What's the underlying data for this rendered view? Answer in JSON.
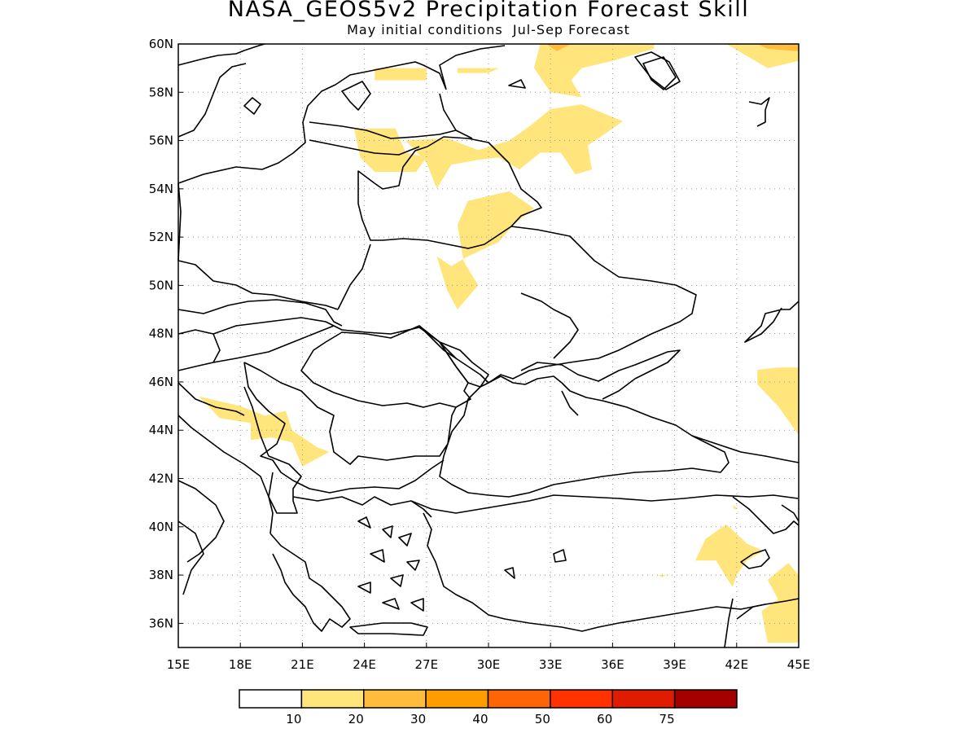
{
  "title": "NASA_GEOS5v2 Precipitation Forecast Skill",
  "subtitle": "May initial conditions  Jul-Sep Forecast",
  "map": {
    "lon_range": [
      15,
      45
    ],
    "lat_range": [
      35,
      60
    ],
    "lon_ticks": [
      "15E",
      "18E",
      "21E",
      "24E",
      "27E",
      "30E",
      "33E",
      "36E",
      "39E",
      "42E",
      "45E"
    ],
    "lat_ticks": [
      "60N",
      "58N",
      "56N",
      "54N",
      "52N",
      "50N",
      "48N",
      "46N",
      "44N",
      "42N",
      "40N",
      "38N",
      "36N"
    ],
    "grid": "dotted",
    "skill_regions": [
      {
        "level": "10-20",
        "lonlat": [
          [
            23.5,
            56.5
          ],
          [
            25.5,
            56.5
          ],
          [
            26,
            55.5
          ],
          [
            27,
            55.3
          ],
          [
            26.5,
            54.7
          ],
          [
            24.5,
            54.7
          ],
          [
            23.8,
            55.3
          ]
        ]
      },
      {
        "level": "10-20",
        "lonlat": [
          [
            26,
            56
          ],
          [
            28,
            56.1
          ],
          [
            29.5,
            55.6
          ],
          [
            31,
            56
          ],
          [
            32,
            56.6
          ],
          [
            33,
            57.3
          ],
          [
            34.5,
            57.5
          ],
          [
            36.5,
            56.8
          ],
          [
            35.5,
            56.2
          ],
          [
            34.8,
            55.8
          ],
          [
            35,
            54.8
          ],
          [
            34.2,
            54.6
          ],
          [
            33.5,
            55.5
          ],
          [
            32.5,
            55.5
          ],
          [
            31.5,
            54.8
          ],
          [
            30.5,
            55.3
          ],
          [
            29.5,
            55.2
          ],
          [
            28.2,
            55
          ],
          [
            27.5,
            54
          ],
          [
            27,
            55.1
          ]
        ]
      },
      {
        "level": "10-20",
        "lonlat": [
          [
            29,
            53.5
          ],
          [
            31,
            53.9
          ],
          [
            32.2,
            53.2
          ],
          [
            31.2,
            52.5
          ],
          [
            30.5,
            51.8
          ],
          [
            29,
            51.2
          ],
          [
            28.2,
            50.8
          ],
          [
            27.5,
            51.2
          ],
          [
            28,
            49.8
          ],
          [
            28.5,
            49
          ],
          [
            29.5,
            50
          ],
          [
            28.8,
            51
          ],
          [
            28.5,
            52.5
          ]
        ]
      },
      {
        "level": "10-20",
        "lonlat": [
          [
            28.5,
            59
          ],
          [
            30.5,
            59
          ],
          [
            30,
            58.8
          ],
          [
            28.5,
            58.8
          ]
        ]
      },
      {
        "level": "10-20",
        "lonlat": [
          [
            24.5,
            59
          ],
          [
            27,
            59
          ],
          [
            27,
            58.5
          ],
          [
            24.5,
            58.5
          ]
        ]
      },
      {
        "level": "10-20",
        "lonlat": [
          [
            32.5,
            60
          ],
          [
            38,
            60
          ],
          [
            38,
            59.8
          ],
          [
            36,
            59.3
          ],
          [
            34.5,
            59
          ],
          [
            34,
            58.5
          ],
          [
            34.5,
            57.8
          ],
          [
            33,
            58
          ],
          [
            32.2,
            59
          ]
        ]
      },
      {
        "level": "10-20",
        "lonlat": [
          [
            41.5,
            60
          ],
          [
            45,
            60
          ],
          [
            45,
            59.3
          ],
          [
            43.5,
            59
          ],
          [
            42.5,
            59.5
          ]
        ]
      },
      {
        "level": "20-30",
        "lonlat": [
          [
            32.8,
            60
          ],
          [
            34,
            60
          ],
          [
            33.3,
            59.7
          ]
        ]
      },
      {
        "level": "20-30",
        "lonlat": [
          [
            43,
            60
          ],
          [
            45,
            60
          ],
          [
            45,
            59.7
          ],
          [
            43.5,
            59.8
          ]
        ]
      },
      {
        "level": "10-20",
        "lonlat": [
          [
            16,
            45.4
          ],
          [
            18,
            45
          ],
          [
            19.2,
            44.6
          ],
          [
            20.2,
            44.8
          ],
          [
            20.5,
            44
          ],
          [
            21.7,
            43.3
          ],
          [
            22.3,
            43.1
          ],
          [
            21,
            42.5
          ],
          [
            20.5,
            43.5
          ],
          [
            19.5,
            43.7
          ],
          [
            18.5,
            43.6
          ],
          [
            18.5,
            44.3
          ],
          [
            17,
            44.5
          ]
        ]
      },
      {
        "level": "10-20",
        "lonlat": [
          [
            43,
            46.5
          ],
          [
            44,
            46.6
          ],
          [
            45,
            46.6
          ],
          [
            45,
            43.8
          ],
          [
            44,
            45
          ],
          [
            43,
            45.9
          ]
        ]
      },
      {
        "level": "10-20",
        "lonlat": [
          [
            40.5,
            39.5
          ],
          [
            41.5,
            40.1
          ],
          [
            42.5,
            39.3
          ],
          [
            43.3,
            39
          ],
          [
            42.5,
            38.6
          ],
          [
            42,
            38
          ],
          [
            41.8,
            37.5
          ],
          [
            41,
            38.6
          ],
          [
            40,
            38.6
          ]
        ]
      },
      {
        "level": "10-20",
        "lonlat": [
          [
            43.5,
            37.8
          ],
          [
            44.5,
            38.5
          ],
          [
            45,
            38
          ],
          [
            45,
            35.2
          ],
          [
            43.5,
            35.2
          ],
          [
            43.2,
            36.5
          ],
          [
            44,
            37
          ]
        ]
      },
      {
        "level": "10-20",
        "lonlat": [
          [
            38.2,
            38
          ],
          [
            38.6,
            38
          ],
          [
            38.4,
            37.9
          ]
        ]
      },
      {
        "level": "10-20",
        "lonlat": [
          [
            41.8,
            40.9
          ],
          [
            42,
            40.8
          ],
          [
            41.9,
            40.7
          ]
        ]
      }
    ]
  },
  "colorbar": {
    "colors": [
      "#ffffff",
      "#ffe57b",
      "#ffbc3d",
      "#ff9d00",
      "#ff6406",
      "#ff3200",
      "#e01c00",
      "#a50000"
    ],
    "labels": [
      "10",
      "20",
      "30",
      "40",
      "50",
      "60",
      "75"
    ]
  }
}
